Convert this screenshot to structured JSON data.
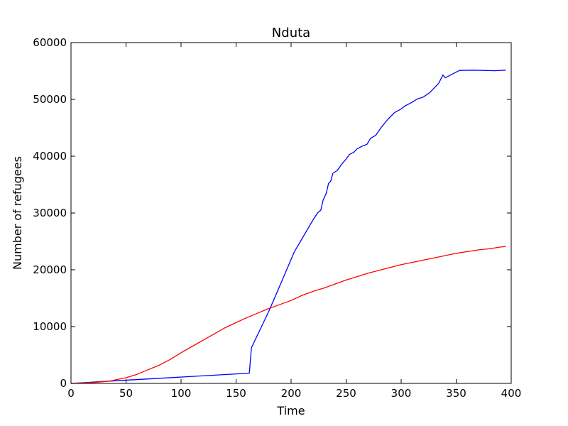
{
  "chart_data": {
    "type": "line",
    "title": "Nduta",
    "xlabel": "Time",
    "ylabel": "Number of refugees",
    "xlim": [
      0,
      400
    ],
    "ylim": [
      0,
      60000
    ],
    "x_ticks": [
      0,
      50,
      100,
      150,
      200,
      250,
      300,
      350,
      400
    ],
    "y_ticks": [
      0,
      10000,
      20000,
      30000,
      40000,
      50000,
      60000
    ],
    "x_tick_labels": [
      "0",
      "50",
      "100",
      "150",
      "200",
      "250",
      "300",
      "350",
      "400"
    ],
    "y_tick_labels": [
      "0",
      "10000",
      "20000",
      "30000",
      "40000",
      "50000",
      "60000"
    ],
    "grid": false,
    "legend": "none",
    "series": [
      {
        "color": "#0000ff",
        "points": [
          [
            0,
            0
          ],
          [
            35,
            400
          ],
          [
            162,
            1800
          ],
          [
            164,
            6300
          ],
          [
            180,
            12800
          ],
          [
            192,
            18200
          ],
          [
            203,
            23200
          ],
          [
            210,
            25500
          ],
          [
            220,
            28800
          ],
          [
            224,
            30000
          ],
          [
            227,
            30500
          ],
          [
            229,
            32200
          ],
          [
            232,
            33500
          ],
          [
            234,
            35200
          ],
          [
            236,
            35600
          ],
          [
            238,
            37000
          ],
          [
            242,
            37500
          ],
          [
            246,
            38600
          ],
          [
            250,
            39500
          ],
          [
            253,
            40300
          ],
          [
            257,
            40700
          ],
          [
            260,
            41300
          ],
          [
            265,
            41800
          ],
          [
            269,
            42100
          ],
          [
            272,
            43100
          ],
          [
            277,
            43700
          ],
          [
            282,
            45100
          ],
          [
            288,
            46500
          ],
          [
            294,
            47700
          ],
          [
            299,
            48200
          ],
          [
            304,
            48900
          ],
          [
            309,
            49400
          ],
          [
            315,
            50100
          ],
          [
            320,
            50400
          ],
          [
            326,
            51200
          ],
          [
            334,
            52800
          ],
          [
            338,
            54300
          ],
          [
            340,
            53800
          ],
          [
            344,
            54200
          ],
          [
            348,
            54600
          ],
          [
            353,
            55100
          ],
          [
            365,
            55150
          ],
          [
            385,
            55050
          ],
          [
            395,
            55150
          ]
        ]
      },
      {
        "color": "#ff0000",
        "points": [
          [
            0,
            0
          ],
          [
            20,
            150
          ],
          [
            35,
            400
          ],
          [
            50,
            1000
          ],
          [
            60,
            1600
          ],
          [
            70,
            2400
          ],
          [
            80,
            3200
          ],
          [
            90,
            4200
          ],
          [
            100,
            5400
          ],
          [
            110,
            6500
          ],
          [
            120,
            7600
          ],
          [
            130,
            8700
          ],
          [
            140,
            9800
          ],
          [
            150,
            10700
          ],
          [
            160,
            11600
          ],
          [
            170,
            12400
          ],
          [
            180,
            13200
          ],
          [
            190,
            13900
          ],
          [
            200,
            14600
          ],
          [
            210,
            15500
          ],
          [
            220,
            16200
          ],
          [
            230,
            16800
          ],
          [
            240,
            17500
          ],
          [
            250,
            18200
          ],
          [
            260,
            18800
          ],
          [
            270,
            19400
          ],
          [
            280,
            19900
          ],
          [
            290,
            20400
          ],
          [
            300,
            20900
          ],
          [
            310,
            21300
          ],
          [
            320,
            21700
          ],
          [
            330,
            22100
          ],
          [
            340,
            22500
          ],
          [
            350,
            22900
          ],
          [
            360,
            23200
          ],
          [
            370,
            23500
          ],
          [
            380,
            23700
          ],
          [
            390,
            24000
          ],
          [
            395,
            24100
          ]
        ]
      }
    ]
  }
}
